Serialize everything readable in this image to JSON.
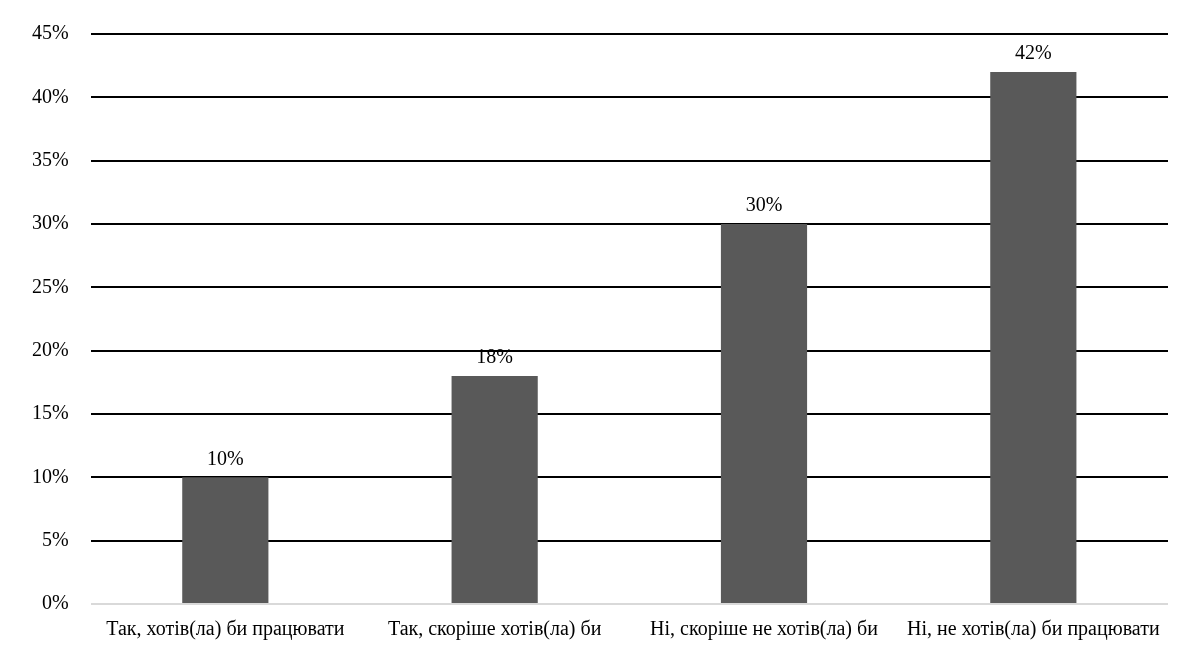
{
  "chart_data": {
    "type": "bar",
    "categories": [
      "Так, хотів(ла) би працювати",
      "Так, скоріше хотів(ла) би",
      "Ні, скоріше не хотів(ла) би",
      "Ні, не хотів(ла) би працювати"
    ],
    "values": [
      10,
      18,
      30,
      42
    ],
    "value_labels": [
      "10%",
      "18%",
      "30%",
      "42%"
    ],
    "color": "#595959",
    "ylim": [
      0,
      45
    ],
    "yticks": [
      {
        "value": 0,
        "label": "0%"
      },
      {
        "value": 5,
        "label": "5%"
      },
      {
        "value": 10,
        "label": "10%"
      },
      {
        "value": 15,
        "label": "15%"
      },
      {
        "value": 20,
        "label": "20%"
      },
      {
        "value": 25,
        "label": "25%"
      },
      {
        "value": 30,
        "label": "30%"
      },
      {
        "value": 35,
        "label": "35%"
      },
      {
        "value": 40,
        "label": "40%"
      },
      {
        "value": 45,
        "label": "45%"
      }
    ],
    "grid": "y"
  }
}
